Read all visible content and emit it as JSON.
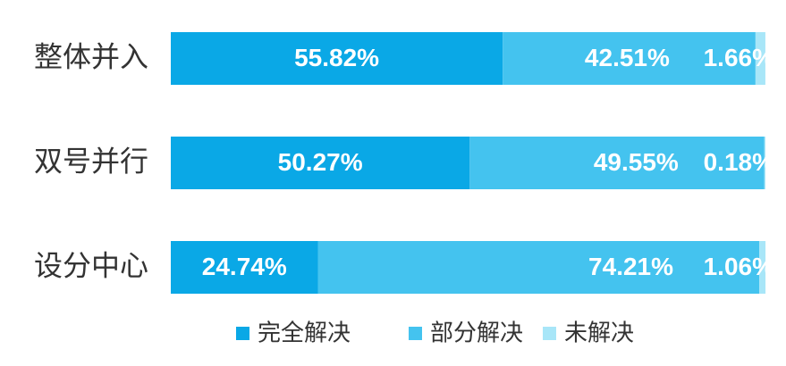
{
  "chart_data": {
    "type": "bar",
    "orientation": "horizontal",
    "stacked": true,
    "categories": [
      "整体并入",
      "双号并行",
      "设分中心"
    ],
    "series": [
      {
        "name": "完全解决",
        "values": [
          55.82,
          50.27,
          24.74
        ],
        "color": "#0aa8e6"
      },
      {
        "name": "部分解决",
        "values": [
          42.51,
          49.55,
          74.21
        ],
        "color": "#44c3ef"
      },
      {
        "name": "未解决",
        "values": [
          1.66,
          0.18,
          1.06
        ],
        "color": "#a8e6f8"
      }
    ],
    "data_labels": [
      [
        "55.82%",
        "50.27%",
        "24.74%"
      ],
      [
        "42.51%",
        "49.55%",
        "74.21%"
      ],
      [
        "1.66%",
        "0.18%",
        "1.06%"
      ]
    ],
    "xlim": [
      0,
      100
    ],
    "grid": false,
    "legend_position": "bottom"
  }
}
